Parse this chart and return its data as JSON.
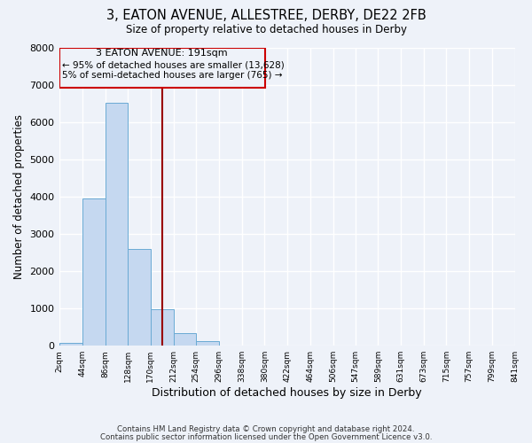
{
  "title": "3, EATON AVENUE, ALLESTREE, DERBY, DE22 2FB",
  "subtitle": "Size of property relative to detached houses in Derby",
  "xlabel": "Distribution of detached houses by size in Derby",
  "ylabel": "Number of detached properties",
  "bin_edges": [
    2,
    44,
    86,
    128,
    170,
    212,
    254,
    296,
    338,
    380,
    422,
    464,
    506,
    547,
    589,
    631,
    673,
    715,
    757,
    799,
    841
  ],
  "bin_labels": [
    "2sqm",
    "44sqm",
    "86sqm",
    "128sqm",
    "170sqm",
    "212sqm",
    "254sqm",
    "296sqm",
    "338sqm",
    "380sqm",
    "422sqm",
    "464sqm",
    "506sqm",
    "547sqm",
    "589sqm",
    "631sqm",
    "673sqm",
    "715sqm",
    "757sqm",
    "799sqm",
    "841sqm"
  ],
  "counts": [
    65,
    3960,
    6530,
    2610,
    975,
    330,
    115,
    0,
    0,
    0,
    0,
    0,
    0,
    0,
    0,
    0,
    0,
    0,
    0,
    0
  ],
  "bar_color": "#c5d8f0",
  "bar_edge_color": "#6aaad4",
  "property_line_x": 191,
  "property_line_color": "#990000",
  "annotation_line1": "3 EATON AVENUE: 191sqm",
  "annotation_line2": "← 95% of detached houses are smaller (13,628)",
  "annotation_line3": "5% of semi-detached houses are larger (765) →",
  "annotation_box_color": "#cc0000",
  "ylim": [
    0,
    8000
  ],
  "yticks": [
    0,
    1000,
    2000,
    3000,
    4000,
    5000,
    6000,
    7000,
    8000
  ],
  "footer_line1": "Contains HM Land Registry data © Crown copyright and database right 2024.",
  "footer_line2": "Contains public sector information licensed under the Open Government Licence v3.0.",
  "background_color": "#eef2f9",
  "grid_color": "#ffffff"
}
